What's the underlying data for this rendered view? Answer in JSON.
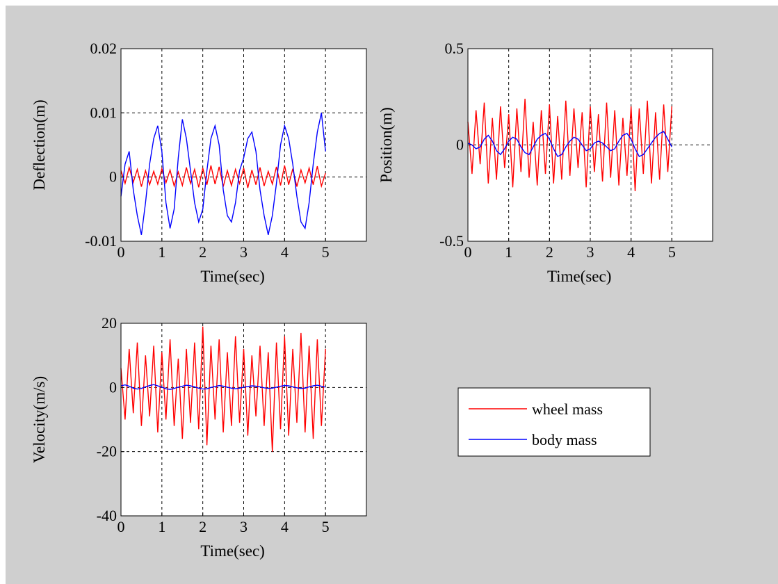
{
  "window": {
    "background": "#cfcfcf"
  },
  "chart_data": [
    {
      "type": "line",
      "xlabel": "Time(sec)",
      "ylabel": "Deflection(m)",
      "xlim": [
        0,
        6
      ],
      "ylim": [
        -0.01,
        0.02
      ],
      "xticks": [
        0,
        1,
        2,
        3,
        4,
        5
      ],
      "xtick_labels": [
        "0",
        "1",
        "2",
        "3",
        "4",
        "5"
      ],
      "yticks": [
        -0.01,
        0,
        0.01,
        0.02
      ],
      "ytick_labels": [
        "-0.01",
        "0",
        "0.01",
        "0.02"
      ],
      "grid": true,
      "series": [
        {
          "name": "wheel mass",
          "color": "#ff0000",
          "x": [
            0,
            0.1,
            0.2,
            0.3,
            0.4,
            0.5,
            0.6,
            0.7,
            0.8,
            0.9,
            1.0,
            1.1,
            1.2,
            1.3,
            1.4,
            1.5,
            1.6,
            1.7,
            1.8,
            1.9,
            2.0,
            2.1,
            2.2,
            2.3,
            2.4,
            2.5,
            2.6,
            2.7,
            2.8,
            2.9,
            3.0,
            3.1,
            3.2,
            3.3,
            3.4,
            3.5,
            3.6,
            3.7,
            3.8,
            3.9,
            4.0,
            4.1,
            4.2,
            4.3,
            4.4,
            4.5,
            4.6,
            4.7,
            4.8,
            4.9,
            5.0
          ],
          "y": [
            0.001,
            -0.001,
            0.0015,
            -0.0008,
            0.0012,
            -0.0015,
            0.001,
            -0.0012,
            0.0009,
            -0.0011,
            0.0013,
            -0.0009,
            0.0011,
            -0.0014,
            0.0008,
            -0.0013,
            0.0015,
            -0.001,
            0.0012,
            -0.0016,
            0.0014,
            -0.0012,
            0.0018,
            -0.0011,
            0.0016,
            -0.0015,
            0.001,
            -0.0013,
            0.0012,
            -0.001,
            0.0014,
            -0.0017,
            0.0011,
            -0.0012,
            0.0015,
            -0.0014,
            0.0009,
            -0.0011,
            0.0016,
            -0.0013,
            0.0018,
            -0.0012,
            0.0013,
            -0.0015,
            0.0011,
            -0.0009,
            0.0014,
            -0.0012,
            0.0017,
            -0.0014,
            0.0006
          ]
        },
        {
          "name": "body mass",
          "color": "#0000ff",
          "x": [
            0,
            0.1,
            0.2,
            0.3,
            0.4,
            0.5,
            0.6,
            0.7,
            0.8,
            0.9,
            1.0,
            1.1,
            1.2,
            1.3,
            1.4,
            1.5,
            1.6,
            1.7,
            1.8,
            1.9,
            2.0,
            2.1,
            2.2,
            2.3,
            2.4,
            2.5,
            2.6,
            2.7,
            2.8,
            2.9,
            3.0,
            3.1,
            3.2,
            3.3,
            3.4,
            3.5,
            3.6,
            3.7,
            3.8,
            3.9,
            4.0,
            4.1,
            4.2,
            4.3,
            4.4,
            4.5,
            4.6,
            4.7,
            4.8,
            4.9,
            5.0
          ],
          "y": [
            -0.003,
            0.002,
            0.004,
            -0.002,
            -0.006,
            -0.009,
            -0.004,
            0.002,
            0.006,
            0.008,
            0.004,
            -0.004,
            -0.008,
            -0.005,
            0.003,
            0.009,
            0.006,
            0.001,
            -0.004,
            -0.007,
            -0.005,
            0.001,
            0.006,
            0.008,
            0.005,
            -0.002,
            -0.006,
            -0.007,
            -0.004,
            0.001,
            0.003,
            0.006,
            0.007,
            0.004,
            -0.002,
            -0.006,
            -0.009,
            -0.006,
            -0.001,
            0.005,
            0.008,
            0.006,
            0.002,
            -0.003,
            -0.007,
            -0.008,
            -0.004,
            0.002,
            0.007,
            0.01,
            0.004
          ]
        }
      ]
    },
    {
      "type": "line",
      "xlabel": "Time(sec)",
      "ylabel": "Position(m)",
      "xlim": [
        0,
        6
      ],
      "ylim": [
        -0.5,
        0.5
      ],
      "xticks": [
        0,
        1,
        2,
        3,
        4,
        5
      ],
      "xtick_labels": [
        "0",
        "1",
        "2",
        "3",
        "4",
        "5"
      ],
      "yticks": [
        -0.5,
        0,
        0.5
      ],
      "ytick_labels": [
        "-0.5",
        "0",
        "0.5"
      ],
      "grid": true,
      "series": [
        {
          "name": "wheel mass",
          "color": "#ff0000",
          "x": [
            0,
            0.1,
            0.2,
            0.3,
            0.4,
            0.5,
            0.6,
            0.7,
            0.8,
            0.9,
            1.0,
            1.1,
            1.2,
            1.3,
            1.4,
            1.5,
            1.6,
            1.7,
            1.8,
            1.9,
            2.0,
            2.1,
            2.2,
            2.3,
            2.4,
            2.5,
            2.6,
            2.7,
            2.8,
            2.9,
            3.0,
            3.1,
            3.2,
            3.3,
            3.4,
            3.5,
            3.6,
            3.7,
            3.8,
            3.9,
            4.0,
            4.1,
            4.2,
            4.3,
            4.4,
            4.5,
            4.6,
            4.7,
            4.8,
            4.9,
            5.0
          ],
          "y": [
            0.12,
            -0.15,
            0.18,
            -0.1,
            0.22,
            -0.2,
            0.14,
            -0.18,
            0.2,
            -0.12,
            0.16,
            -0.22,
            0.19,
            -0.14,
            0.24,
            -0.17,
            0.12,
            -0.21,
            0.18,
            -0.15,
            0.21,
            -0.2,
            0.15,
            -0.18,
            0.23,
            -0.16,
            0.19,
            -0.12,
            0.17,
            -0.22,
            0.2,
            -0.14,
            0.16,
            -0.19,
            0.22,
            -0.17,
            0.18,
            -0.21,
            0.14,
            -0.16,
            0.2,
            -0.24,
            0.19,
            -0.15,
            0.23,
            -0.2,
            0.17,
            -0.18,
            0.21,
            -0.14,
            0.2
          ]
        },
        {
          "name": "body mass",
          "color": "#0000ff",
          "x": [
            0,
            0.1,
            0.2,
            0.3,
            0.4,
            0.5,
            0.6,
            0.7,
            0.8,
            0.9,
            1.0,
            1.1,
            1.2,
            1.3,
            1.4,
            1.5,
            1.6,
            1.7,
            1.8,
            1.9,
            2.0,
            2.1,
            2.2,
            2.3,
            2.4,
            2.5,
            2.6,
            2.7,
            2.8,
            2.9,
            3.0,
            3.1,
            3.2,
            3.3,
            3.4,
            3.5,
            3.6,
            3.7,
            3.8,
            3.9,
            4.0,
            4.1,
            4.2,
            4.3,
            4.4,
            4.5,
            4.6,
            4.7,
            4.8,
            4.9,
            5.0
          ],
          "y": [
            0.01,
            0.0,
            -0.02,
            -0.01,
            0.03,
            0.05,
            0.02,
            -0.03,
            -0.05,
            -0.02,
            0.02,
            0.04,
            0.03,
            -0.01,
            -0.04,
            -0.05,
            -0.01,
            0.03,
            0.05,
            0.06,
            0.03,
            -0.02,
            -0.06,
            -0.05,
            -0.01,
            0.02,
            0.04,
            0.03,
            0.0,
            -0.03,
            -0.02,
            0.01,
            0.02,
            0.01,
            -0.01,
            -0.03,
            -0.02,
            0.02,
            0.05,
            0.06,
            0.03,
            -0.02,
            -0.06,
            -0.05,
            -0.02,
            0.01,
            0.04,
            0.06,
            0.07,
            0.03,
            -0.01
          ]
        }
      ]
    },
    {
      "type": "line",
      "xlabel": "Time(sec)",
      "ylabel": "Velocity(m/s)",
      "xlim": [
        0,
        6
      ],
      "ylim": [
        -40,
        20
      ],
      "xticks": [
        0,
        1,
        2,
        3,
        4,
        5
      ],
      "xtick_labels": [
        "0",
        "1",
        "2",
        "3",
        "4",
        "5"
      ],
      "yticks": [
        -40,
        -20,
        0,
        20
      ],
      "ytick_labels": [
        "-40",
        "-20",
        "0",
        "20"
      ],
      "grid": true,
      "series": [
        {
          "name": "wheel mass",
          "color": "#ff0000",
          "x": [
            0,
            0.1,
            0.2,
            0.3,
            0.4,
            0.5,
            0.6,
            0.7,
            0.8,
            0.9,
            1.0,
            1.1,
            1.2,
            1.3,
            1.4,
            1.5,
            1.6,
            1.7,
            1.8,
            1.9,
            2.0,
            2.1,
            2.2,
            2.3,
            2.4,
            2.5,
            2.6,
            2.7,
            2.8,
            2.9,
            3.0,
            3.1,
            3.2,
            3.3,
            3.4,
            3.5,
            3.6,
            3.7,
            3.8,
            3.9,
            4.0,
            4.1,
            4.2,
            4.3,
            4.4,
            4.5,
            4.6,
            4.7,
            4.8,
            4.9,
            5.0
          ],
          "y": [
            6,
            -10,
            12,
            -8,
            14,
            -12,
            10,
            -9,
            13,
            -14,
            11,
            -10,
            15,
            -12,
            9,
            -16,
            12,
            -11,
            14,
            -13,
            19,
            -18,
            13,
            -10,
            15,
            -14,
            11,
            -12,
            16,
            -11,
            12,
            -15,
            10,
            -9,
            13,
            -12,
            11,
            -20,
            14,
            -13,
            16,
            -15,
            12,
            -11,
            17,
            -14,
            13,
            -16,
            15,
            -12,
            12
          ]
        },
        {
          "name": "body mass",
          "color": "#0000ff",
          "x": [
            0,
            0.1,
            0.2,
            0.3,
            0.4,
            0.5,
            0.6,
            0.7,
            0.8,
            0.9,
            1.0,
            1.1,
            1.2,
            1.3,
            1.4,
            1.5,
            1.6,
            1.7,
            1.8,
            1.9,
            2.0,
            2.1,
            2.2,
            2.3,
            2.4,
            2.5,
            2.6,
            2.7,
            2.8,
            2.9,
            3.0,
            3.1,
            3.2,
            3.3,
            3.4,
            3.5,
            3.6,
            3.7,
            3.8,
            3.9,
            4.0,
            4.1,
            4.2,
            4.3,
            4.4,
            4.5,
            4.6,
            4.7,
            4.8,
            4.9,
            5.0
          ],
          "y": [
            0.5,
            0.8,
            0.4,
            -0.2,
            -0.5,
            -0.3,
            0.2,
            0.6,
            0.9,
            0.5,
            0.1,
            -0.4,
            -0.6,
            -0.3,
            0.1,
            0.4,
            0.7,
            0.5,
            0.2,
            -0.2,
            -0.5,
            -0.4,
            0.0,
            0.3,
            0.6,
            0.4,
            0.1,
            -0.2,
            -0.4,
            -0.2,
            0.1,
            0.3,
            0.5,
            0.4,
            0.2,
            -0.1,
            -0.3,
            -0.2,
            0.1,
            0.4,
            0.6,
            0.5,
            0.2,
            -0.1,
            -0.3,
            -0.2,
            0.2,
            0.5,
            0.7,
            0.4,
            0.1
          ]
        }
      ]
    }
  ],
  "legend": {
    "entries": [
      {
        "label": "wheel mass",
        "color": "#ff0000"
      },
      {
        "label": "body mass",
        "color": "#0000ff"
      }
    ]
  }
}
